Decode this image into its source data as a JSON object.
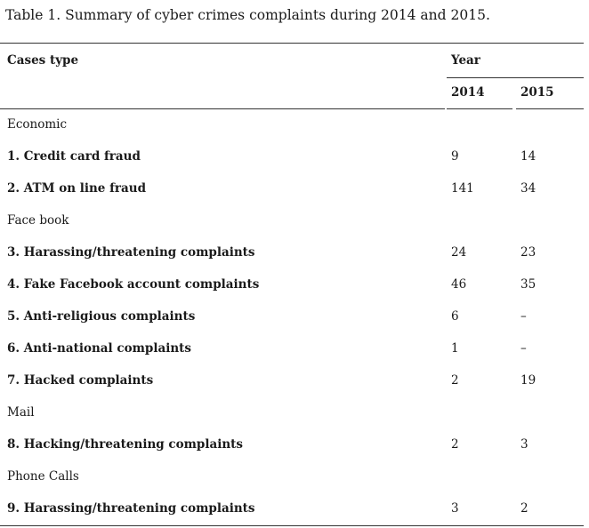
{
  "caption": "Table 1. Summary of cyber crimes complaints during 2014 and 2015.",
  "header": {
    "cases_type": "Cases type",
    "year": "Year",
    "year_2014": "2014",
    "year_2015": "2015"
  },
  "groups": {
    "economic": "Economic",
    "facebook": "Face book",
    "mail": "Mail",
    "phone": "Phone Calls"
  },
  "rows": [
    {
      "label": "1. Credit card fraud",
      "v2014": "9",
      "v2015": "14"
    },
    {
      "label": "2. ATM on line fraud",
      "v2014": "141",
      "v2015": "34"
    },
    {
      "label": "3. Harassing/threatening complaints",
      "v2014": "24",
      "v2015": "23"
    },
    {
      "label": "4. Fake Facebook account complaints",
      "v2014": "46",
      "v2015": "35"
    },
    {
      "label": "5. Anti-religious complaints",
      "v2014": "6",
      "v2015": "–"
    },
    {
      "label": "6. Anti-national complaints",
      "v2014": "1",
      "v2015": "–"
    },
    {
      "label": "7. Hacked complaints",
      "v2014": "2",
      "v2015": "19"
    },
    {
      "label": "8. Hacking/threatening complaints",
      "v2014": "2",
      "v2015": "3"
    },
    {
      "label": "9. Harassing/threatening complaints",
      "v2014": "3",
      "v2015": "2"
    }
  ]
}
